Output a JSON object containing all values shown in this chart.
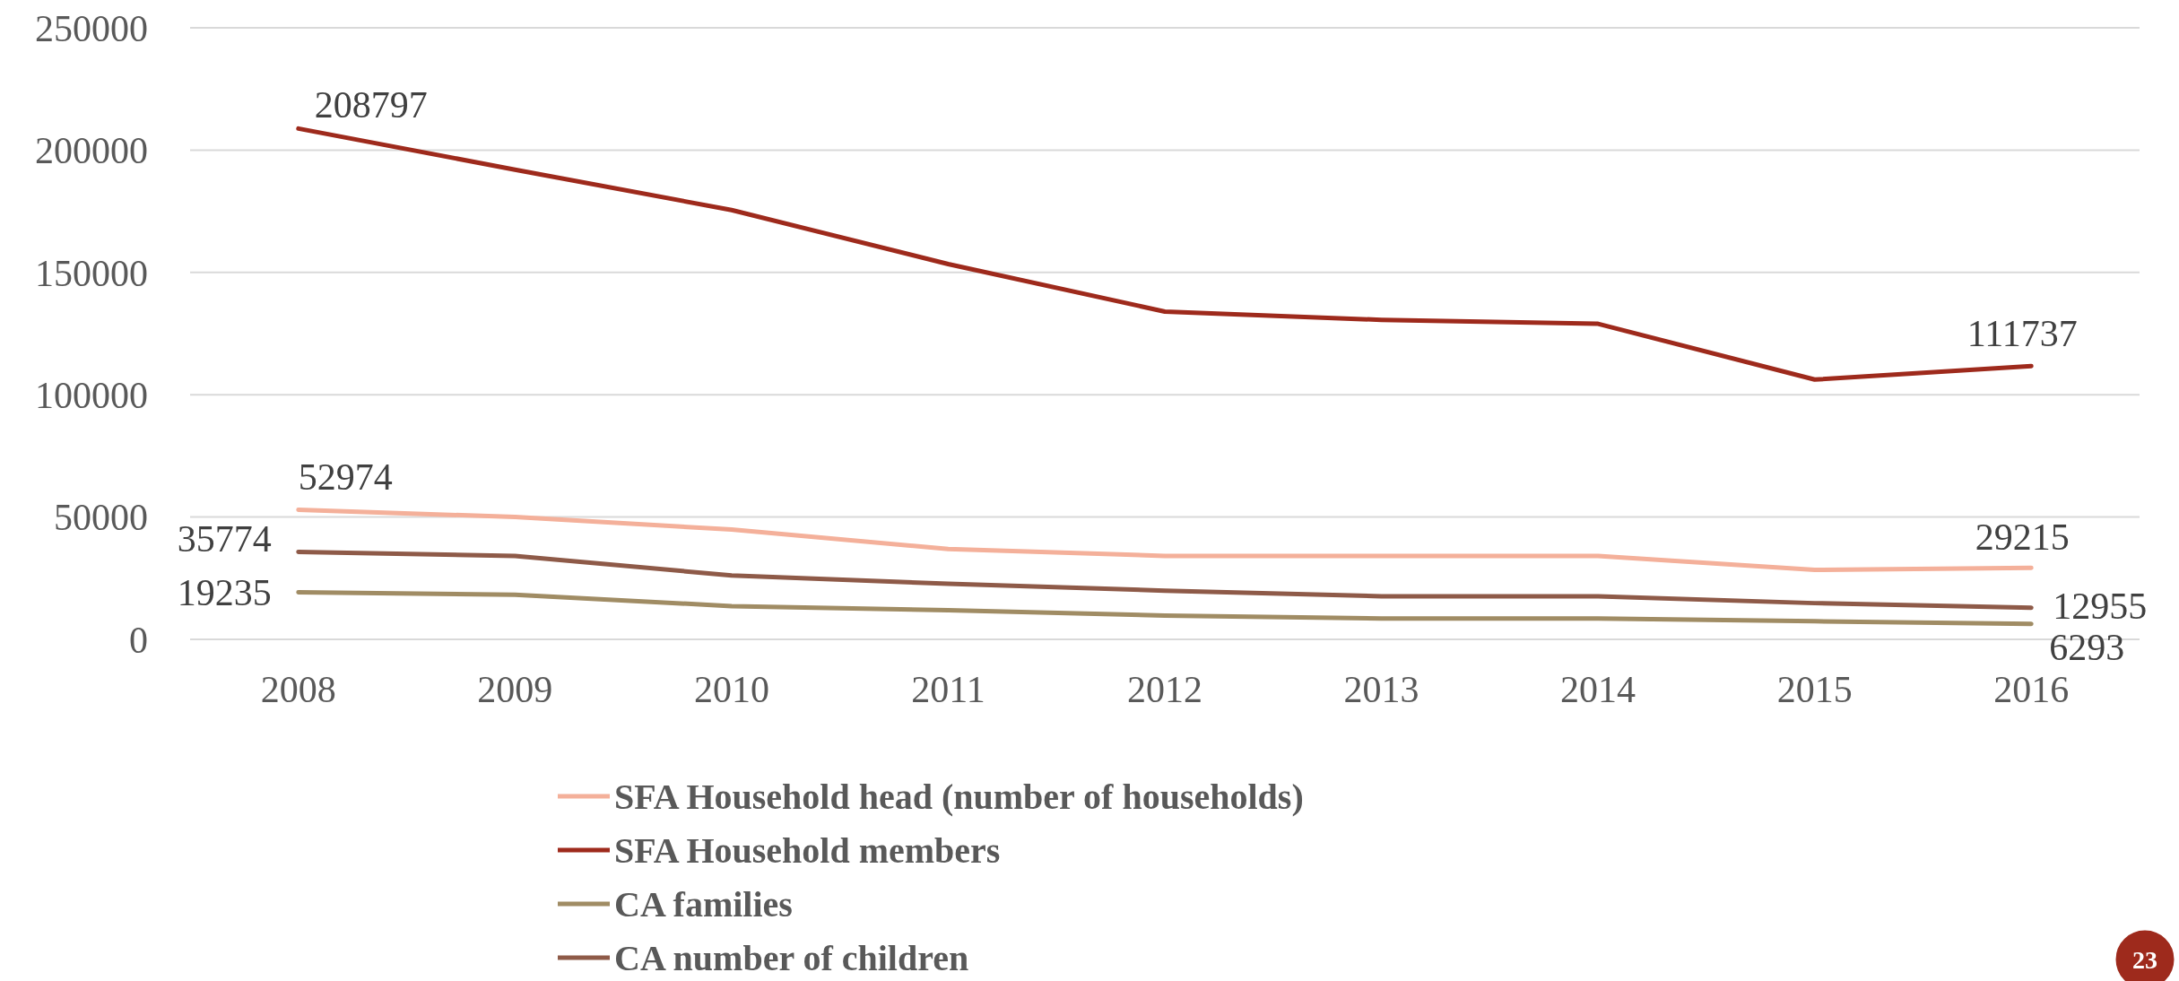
{
  "chart_data": {
    "type": "line",
    "categories": [
      "2008",
      "2009",
      "2010",
      "2011",
      "2012",
      "2013",
      "2014",
      "2015",
      "2016"
    ],
    "ylim": [
      0,
      250000
    ],
    "yticks": [
      0,
      50000,
      100000,
      150000,
      200000,
      250000
    ],
    "grid": "y",
    "legend": "bottom",
    "marker": "none",
    "line_style": "solid",
    "series": [
      {
        "name": "SFA Household head (number of households)",
        "color": "#f4b09a",
        "values": [
          52974,
          50000,
          44900,
          36900,
          34100,
          34100,
          34100,
          28400,
          29215
        ],
        "value_labels": [
          "52974",
          null,
          null,
          null,
          null,
          null,
          null,
          null,
          "29215"
        ]
      },
      {
        "name": "SFA Household members",
        "color": "#9e2a1c",
        "values": [
          208797,
          192000,
          175500,
          153400,
          134000,
          130600,
          129000,
          106200,
          111737
        ],
        "value_labels": [
          "208797",
          null,
          null,
          null,
          null,
          null,
          null,
          null,
          "111737"
        ]
      },
      {
        "name": "CA families",
        "color": "#a08c64",
        "values": [
          19235,
          18200,
          13600,
          11900,
          9700,
          8500,
          8500,
          7400,
          6293
        ],
        "value_labels": [
          "19235",
          null,
          null,
          null,
          null,
          null,
          null,
          null,
          "6293"
        ]
      },
      {
        "name": "CA number of children",
        "color": "#8e5a48",
        "values": [
          35774,
          34100,
          26100,
          22700,
          19900,
          17600,
          17600,
          14800,
          12955
        ],
        "value_labels": [
          "35774",
          null,
          null,
          null,
          null,
          null,
          null,
          null,
          "12955"
        ]
      }
    ],
    "annotations": [
      "23"
    ]
  }
}
